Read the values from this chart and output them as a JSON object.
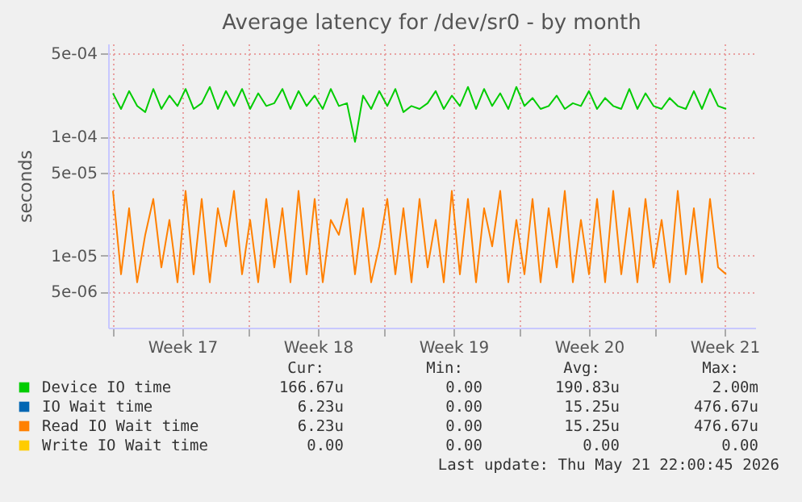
{
  "chart_data": {
    "type": "line",
    "title": "Average latency for /dev/sr0 - by month",
    "ylabel": "seconds",
    "log": "y",
    "grid": true,
    "legend": "bottom",
    "xlim": [
      "2026-04-19T18:00",
      "2026-05-23T04:00"
    ],
    "ylim": [
      2.5e-06,
      0.0006
    ],
    "xticks": [
      {
        "value": "2026-04-20T00:00",
        "label": null
      },
      {
        "value": "2026-04-23T14:00",
        "label": "Week 17"
      },
      {
        "value": "2026-04-27T00:00",
        "label": null
      },
      {
        "value": "2026-04-30T14:00",
        "label": "Week 18"
      },
      {
        "value": "2026-05-04T00:00",
        "label": null
      },
      {
        "value": "2026-05-07T14:00",
        "label": "Week 19"
      },
      {
        "value": "2026-05-11T00:00",
        "label": null
      },
      {
        "value": "2026-05-14T14:00",
        "label": "Week 20"
      },
      {
        "value": "2026-05-18T00:00",
        "label": null
      },
      {
        "value": "2026-05-21T14:00",
        "label": "Week 21"
      }
    ],
    "yticks": [
      {
        "value": 5e-06,
        "label": "5e-06"
      },
      {
        "value": 1e-05,
        "label": "1e-05"
      },
      {
        "value": 5e-05,
        "label": "5e-05"
      },
      {
        "value": 0.0001,
        "label": "1e-04"
      },
      {
        "value": 0.0005,
        "label": "5e-04"
      }
    ],
    "x": [
      "2026-04-20T00:00",
      "2026-04-20T10:00",
      "2026-04-20T20:00",
      "2026-04-21T06:00",
      "2026-04-21T16:00",
      "2026-04-22T02:00",
      "2026-04-22T12:00",
      "2026-04-22T22:00",
      "2026-04-23T08:00",
      "2026-04-23T18:00",
      "2026-04-24T04:00",
      "2026-04-24T14:00",
      "2026-04-25T00:00",
      "2026-04-25T10:00",
      "2026-04-25T20:00",
      "2026-04-26T06:00",
      "2026-04-26T16:00",
      "2026-04-27T02:00",
      "2026-04-27T12:00",
      "2026-04-27T22:00",
      "2026-04-28T08:00",
      "2026-04-28T18:00",
      "2026-04-29T04:00",
      "2026-04-29T14:00",
      "2026-04-30T00:00",
      "2026-04-30T10:00",
      "2026-04-30T20:00",
      "2026-05-01T06:00",
      "2026-05-01T16:00",
      "2026-05-02T02:00",
      "2026-05-02T12:00",
      "2026-05-02T22:00",
      "2026-05-03T08:00",
      "2026-05-03T18:00",
      "2026-05-04T04:00",
      "2026-05-04T14:00",
      "2026-05-05T00:00",
      "2026-05-05T10:00",
      "2026-05-05T20:00",
      "2026-05-06T06:00",
      "2026-05-06T16:00",
      "2026-05-07T02:00",
      "2026-05-07T12:00",
      "2026-05-07T22:00",
      "2026-05-08T08:00",
      "2026-05-08T18:00",
      "2026-05-09T04:00",
      "2026-05-09T14:00",
      "2026-05-10T00:00",
      "2026-05-10T10:00",
      "2026-05-10T20:00",
      "2026-05-11T06:00",
      "2026-05-11T16:00",
      "2026-05-12T02:00",
      "2026-05-12T12:00",
      "2026-05-12T22:00",
      "2026-05-13T08:00",
      "2026-05-13T18:00",
      "2026-05-14T04:00",
      "2026-05-14T14:00",
      "2026-05-15T00:00",
      "2026-05-15T10:00",
      "2026-05-15T20:00",
      "2026-05-16T06:00",
      "2026-05-16T16:00",
      "2026-05-17T02:00",
      "2026-05-17T12:00",
      "2026-05-17T22:00",
      "2026-05-18T08:00",
      "2026-05-18T18:00",
      "2026-05-19T04:00",
      "2026-05-19T14:00",
      "2026-05-20T00:00",
      "2026-05-20T10:00",
      "2026-05-20T20:00",
      "2026-05-21T06:00",
      "2026-05-21T16:00"
    ],
    "series": [
      {
        "name": "Device IO time",
        "color": "#00cc00",
        "values": [
          0.00023,
          0.00017,
          0.00024,
          0.00018,
          0.00016,
          0.00025,
          0.00017,
          0.00022,
          0.00018,
          0.00025,
          0.00017,
          0.00019,
          0.00026,
          0.00017,
          0.00024,
          0.00018,
          0.00025,
          0.00017,
          0.00023,
          0.00018,
          0.00019,
          0.00025,
          0.00017,
          0.00024,
          0.00018,
          0.00022,
          0.00017,
          0.00025,
          0.00018,
          0.00019,
          9e-05,
          0.00022,
          0.00017,
          0.00024,
          0.00018,
          0.00025,
          0.00016,
          0.00018,
          0.00017,
          0.00019,
          0.00024,
          0.00017,
          0.00022,
          0.00018,
          0.00026,
          0.00017,
          0.00025,
          0.00018,
          0.00023,
          0.00017,
          0.00026,
          0.00018,
          0.00021,
          0.00017,
          0.00018,
          0.00022,
          0.00017,
          0.00019,
          0.00018,
          0.00024,
          0.00017,
          0.00021,
          0.00018,
          0.00017,
          0.00025,
          0.00017,
          0.00023,
          0.00018,
          0.00017,
          0.00021,
          0.00018,
          0.00017,
          0.00024,
          0.00017,
          0.00025,
          0.00018,
          0.00017
        ]
      },
      {
        "name": "IO Wait time",
        "color": "#0066b3",
        "values": [
          null,
          null,
          null,
          null,
          null,
          null,
          null,
          null,
          null,
          null,
          null,
          null,
          null,
          null,
          null,
          null,
          null,
          null,
          null,
          null,
          null,
          null,
          null,
          null,
          null,
          null,
          null,
          null,
          null,
          null,
          null,
          null,
          null,
          null,
          null,
          null,
          null,
          null,
          null,
          null,
          null,
          null,
          null,
          null,
          null,
          null,
          null,
          null,
          null,
          null,
          null,
          null,
          null,
          null,
          null,
          null,
          null,
          null,
          null,
          null,
          null,
          null,
          null,
          null,
          null,
          null,
          null,
          null,
          null,
          null,
          null,
          null,
          null,
          null,
          null,
          null,
          null
        ]
      },
      {
        "name": "Read IO Wait time",
        "color": "#ff8000",
        "values": [
          3.5e-05,
          7e-06,
          2.5e-05,
          6e-06,
          1.5e-05,
          3e-05,
          8e-06,
          2e-05,
          6e-06,
          3.5e-05,
          7e-06,
          3e-05,
          6e-06,
          2.5e-05,
          1.2e-05,
          3.5e-05,
          7e-06,
          2e-05,
          6e-06,
          3e-05,
          8e-06,
          2.5e-05,
          6e-06,
          3.5e-05,
          7e-06,
          3e-05,
          6e-06,
          2e-05,
          1.5e-05,
          3e-05,
          7e-06,
          2.5e-05,
          6e-06,
          1.2e-05,
          3e-05,
          7e-06,
          2.5e-05,
          6e-06,
          3e-05,
          8e-06,
          2e-05,
          6e-06,
          3.5e-05,
          7e-06,
          3e-05,
          6e-06,
          2.5e-05,
          1.2e-05,
          3.5e-05,
          6e-06,
          2e-05,
          7e-06,
          3e-05,
          6e-06,
          2.5e-05,
          8e-06,
          3.5e-05,
          6e-06,
          2e-05,
          7e-06,
          3e-05,
          6e-06,
          3.5e-05,
          7e-06,
          2.5e-05,
          6e-06,
          3e-05,
          8e-06,
          2e-05,
          6e-06,
          3.5e-05,
          7e-06,
          2.5e-05,
          6e-06,
          3e-05,
          8e-06,
          7e-06
        ]
      },
      {
        "name": "Write IO Wait time",
        "color": "#ffcc00",
        "values": [
          null,
          null,
          null,
          null,
          null,
          null,
          null,
          null,
          null,
          null,
          null,
          null,
          null,
          null,
          null,
          null,
          null,
          null,
          null,
          null,
          null,
          null,
          null,
          null,
          null,
          null,
          null,
          null,
          null,
          null,
          null,
          null,
          null,
          null,
          null,
          null,
          null,
          null,
          null,
          null,
          null,
          null,
          null,
          null,
          null,
          null,
          null,
          null,
          null,
          null,
          null,
          null,
          null,
          null,
          null,
          null,
          null,
          null,
          null,
          null,
          null,
          null,
          null,
          null,
          null,
          null,
          null,
          null,
          null,
          null,
          null,
          null,
          null,
          null,
          null,
          null,
          null
        ]
      }
    ],
    "annotations": [
      "Cur:",
      "Min:",
      "Avg:",
      "Max:",
      "166.67u",
      "0.00",
      "190.83u",
      "2.00m",
      "6.23u",
      "0.00",
      "15.25u",
      "476.67u",
      "6.23u",
      "0.00",
      "15.25u",
      "476.67u",
      "0.00",
      "0.00",
      "0.00",
      "0.00",
      "Last update: Thu May 21 22:00:45 2026"
    ]
  }
}
